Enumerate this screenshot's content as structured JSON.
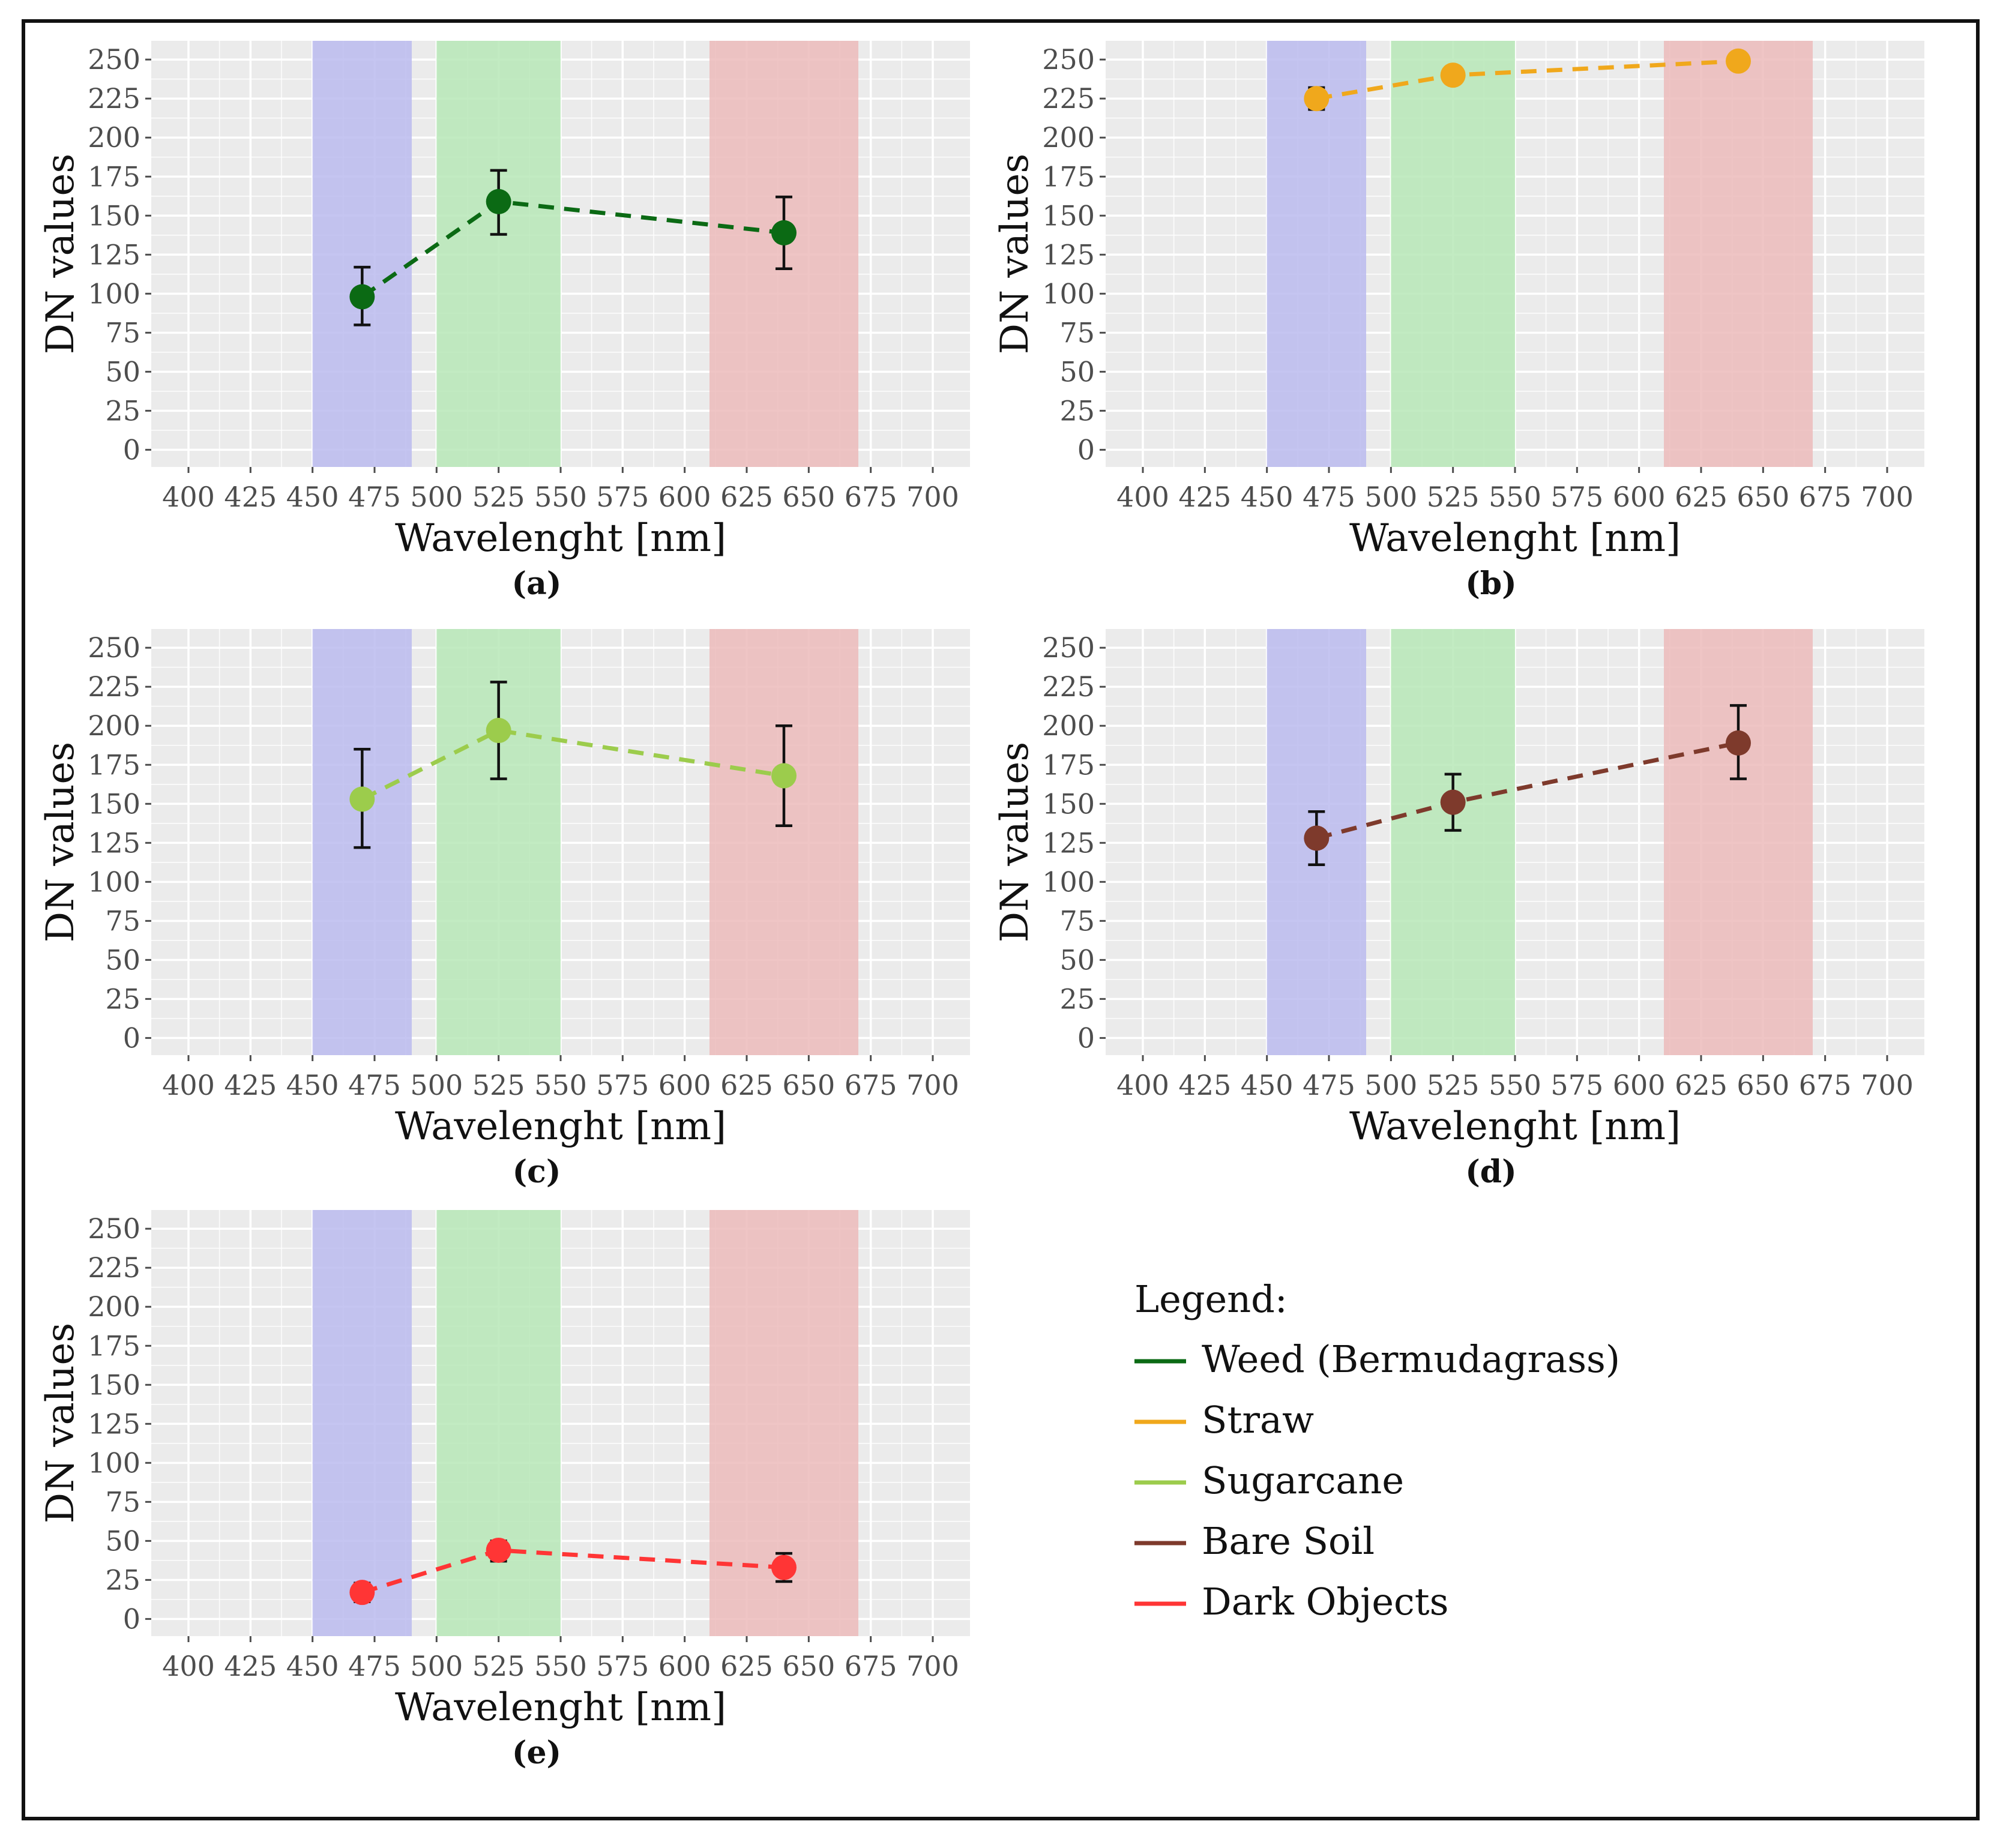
{
  "chart_data": {
    "type": "line",
    "x_axis": {
      "label": "Wavelenght [nm]",
      "ticks": [
        400,
        425,
        450,
        475,
        500,
        525,
        550,
        575,
        600,
        625,
        650,
        675,
        700
      ],
      "range": [
        385,
        715
      ]
    },
    "y_axis": {
      "label": "DN values",
      "ticks": [
        0,
        25,
        50,
        75,
        100,
        125,
        150,
        175,
        200,
        225,
        250
      ],
      "range": [
        -11,
        262
      ]
    },
    "bands": [
      {
        "name": "blue",
        "from": 450,
        "to": 490,
        "color": "#b8b8ee"
      },
      {
        "name": "green",
        "from": 500,
        "to": 550,
        "color": "#b4e6b4"
      },
      {
        "name": "red",
        "from": 610,
        "to": 670,
        "color": "#ebb8b8"
      }
    ],
    "panels": [
      {
        "label": "(a)",
        "series": "Weed (Bermudagrass)",
        "color": "#0b6a14",
        "points": [
          {
            "x": 470,
            "y": 98,
            "lo": 80,
            "hi": 117
          },
          {
            "x": 525,
            "y": 159,
            "lo": 138,
            "hi": 179
          },
          {
            "x": 640,
            "y": 139,
            "lo": 116,
            "hi": 162
          }
        ]
      },
      {
        "label": "(b)",
        "series": "Straw",
        "color": "#f0a81c",
        "points": [
          {
            "x": 470,
            "y": 225,
            "lo": 218,
            "hi": 232
          },
          {
            "x": 525,
            "y": 240,
            "lo": 235,
            "hi": 245
          },
          {
            "x": 640,
            "y": 249,
            "lo": 246,
            "hi": 252
          }
        ]
      },
      {
        "label": "(c)",
        "series": "Sugarcane",
        "color": "#9ccc4c",
        "points": [
          {
            "x": 470,
            "y": 153,
            "lo": 122,
            "hi": 185
          },
          {
            "x": 525,
            "y": 197,
            "lo": 166,
            "hi": 228
          },
          {
            "x": 640,
            "y": 168,
            "lo": 136,
            "hi": 200
          }
        ]
      },
      {
        "label": "(d)",
        "series": "Bare Soil",
        "color": "#7e3a2c",
        "points": [
          {
            "x": 470,
            "y": 128,
            "lo": 111,
            "hi": 145
          },
          {
            "x": 525,
            "y": 151,
            "lo": 133,
            "hi": 169
          },
          {
            "x": 640,
            "y": 189,
            "lo": 166,
            "hi": 213
          }
        ]
      },
      {
        "label": "(e)",
        "series": "Dark Objects",
        "color": "#ff3535",
        "points": [
          {
            "x": 470,
            "y": 17,
            "lo": 11,
            "hi": 23
          },
          {
            "x": 525,
            "y": 44,
            "lo": 37,
            "hi": 50
          },
          {
            "x": 640,
            "y": 33,
            "lo": 24,
            "hi": 42
          }
        ]
      }
    ],
    "legend": {
      "title": "Legend:",
      "entries": [
        {
          "label": "Weed (Bermudagrass)",
          "color": "#0b6a14"
        },
        {
          "label": "Straw",
          "color": "#f0a81c"
        },
        {
          "label": "Sugarcane",
          "color": "#9ccc4c"
        },
        {
          "label": "Bare Soil",
          "color": "#7e3a2c"
        },
        {
          "label": "Dark Objects",
          "color": "#ff3535"
        }
      ],
      "placement": "bottom-right"
    }
  }
}
